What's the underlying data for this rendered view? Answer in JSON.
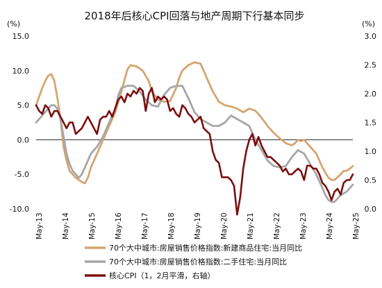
{
  "chart_data": {
    "type": "line",
    "title": "2018年后核心CPI回落与地产周期下行基本同步",
    "left_unit": "(%)",
    "right_unit": "(%)",
    "x_labels": [
      "May-13",
      "May-14",
      "May-15",
      "May-16",
      "May-17",
      "May-18",
      "May-19",
      "May-20",
      "May-21",
      "May-22",
      "May-23",
      "May-24",
      "May-25"
    ],
    "y_left": {
      "min": -10,
      "max": 15,
      "ticks": [
        "15.0",
        "10.0",
        "5.0",
        "0.0",
        "-5.0",
        "-10.0"
      ]
    },
    "y_right": {
      "min": 0,
      "max": 3,
      "ticks": [
        "3.0",
        "2.5",
        "2.0",
        "1.5",
        "1.0",
        "0.5",
        "0.0"
      ]
    },
    "legend_position": "bottom",
    "series": [
      {
        "name": "70个大中城市:房屋销售价格指数:新建商品住宅:当月同比",
        "axis": "left",
        "color": "#D4A571",
        "points": [
          [
            0,
            5
          ],
          [
            2,
            7.5
          ],
          [
            3,
            8.5
          ],
          [
            4,
            9.3
          ],
          [
            5,
            9.5
          ],
          [
            6,
            8.5
          ],
          [
            7,
            6
          ],
          [
            8,
            3
          ],
          [
            9,
            -1
          ],
          [
            10,
            -3
          ],
          [
            11,
            -4.5
          ],
          [
            12,
            -5
          ],
          [
            13,
            -5.5
          ],
          [
            14,
            -5.8
          ],
          [
            15,
            -6.1
          ],
          [
            16,
            -6.3
          ],
          [
            17,
            -5.5
          ],
          [
            18,
            -4
          ],
          [
            20,
            -2
          ],
          [
            22,
            0
          ],
          [
            24,
            2
          ],
          [
            26,
            4
          ],
          [
            28,
            7
          ],
          [
            30,
            10.2
          ],
          [
            31,
            10.8
          ],
          [
            33,
            10.6
          ],
          [
            35,
            10
          ],
          [
            37,
            8.5
          ],
          [
            38,
            7
          ],
          [
            40,
            5.8
          ],
          [
            42,
            5.5
          ],
          [
            44,
            5.6
          ],
          [
            46,
            7.5
          ],
          [
            47,
            9
          ],
          [
            48,
            10
          ],
          [
            50,
            10.8
          ],
          [
            52,
            11.2
          ],
          [
            54,
            11
          ],
          [
            55,
            10
          ],
          [
            56,
            9
          ],
          [
            58,
            7
          ],
          [
            60,
            5.5
          ],
          [
            62,
            5
          ],
          [
            64,
            4.8
          ],
          [
            66,
            4.5
          ],
          [
            68,
            4
          ],
          [
            70,
            4.5
          ],
          [
            72,
            4.2
          ],
          [
            74,
            3.2
          ],
          [
            76,
            2
          ],
          [
            78,
            1
          ],
          [
            80,
            0.2
          ],
          [
            82,
            -0.5
          ],
          [
            84,
            -0.8
          ],
          [
            85,
            -0.5
          ],
          [
            86,
            0
          ],
          [
            87,
            -0.2
          ],
          [
            88,
            0
          ],
          [
            89,
            -0.5
          ],
          [
            90,
            -1
          ],
          [
            92,
            -2
          ],
          [
            94,
            -4
          ],
          [
            96,
            -5.5
          ],
          [
            97,
            -5.8
          ],
          [
            98,
            -5.8
          ],
          [
            100,
            -5
          ],
          [
            101,
            -4.5
          ],
          [
            102,
            -4.5
          ],
          [
            103,
            -4.2
          ],
          [
            104,
            -3.8
          ]
        ]
      },
      {
        "name": "70个大中城市:房屋销售价格指数:二手住宅:当月同比",
        "axis": "left",
        "color": "#A6A6A6",
        "points": [
          [
            0,
            2.5
          ],
          [
            2,
            3.5
          ],
          [
            4,
            4.5
          ],
          [
            5,
            5
          ],
          [
            6,
            5
          ],
          [
            7,
            4.5
          ],
          [
            8,
            3
          ],
          [
            9,
            0.5
          ],
          [
            10,
            -2
          ],
          [
            11,
            -3.5
          ],
          [
            12,
            -4.5
          ],
          [
            13,
            -5
          ],
          [
            14,
            -5.5
          ],
          [
            15,
            -5
          ],
          [
            16,
            -4
          ],
          [
            18,
            -2
          ],
          [
            20,
            -1
          ],
          [
            22,
            0.5
          ],
          [
            24,
            2.5
          ],
          [
            26,
            4.5
          ],
          [
            27,
            6.5
          ],
          [
            28,
            7.5
          ],
          [
            30,
            7.8
          ],
          [
            32,
            7.8
          ],
          [
            34,
            7
          ],
          [
            36,
            5.8
          ],
          [
            38,
            5
          ],
          [
            40,
            4.8
          ],
          [
            42,
            6.5
          ],
          [
            44,
            7.5
          ],
          [
            46,
            7.8
          ],
          [
            48,
            7.8
          ],
          [
            50,
            6
          ],
          [
            52,
            4
          ],
          [
            54,
            3
          ],
          [
            56,
            2.5
          ],
          [
            58,
            2
          ],
          [
            60,
            2
          ],
          [
            62,
            2.5
          ],
          [
            64,
            3.5
          ],
          [
            66,
            3
          ],
          [
            68,
            2.5
          ],
          [
            70,
            2
          ],
          [
            72,
            0
          ],
          [
            74,
            -1.5
          ],
          [
            76,
            -3
          ],
          [
            78,
            -3.8
          ],
          [
            80,
            -4
          ],
          [
            82,
            -3.8
          ],
          [
            84,
            -2.5
          ],
          [
            86,
            -1.5
          ],
          [
            88,
            -2
          ],
          [
            90,
            -3.5
          ],
          [
            92,
            -5
          ],
          [
            94,
            -7
          ],
          [
            95,
            -8
          ],
          [
            96,
            -8.7
          ],
          [
            97,
            -9
          ],
          [
            98,
            -9
          ],
          [
            100,
            -8
          ],
          [
            102,
            -7.5
          ],
          [
            104,
            -6.5
          ]
        ]
      },
      {
        "name": "核心CPI（1，2月平滑，右轴）",
        "axis": "right",
        "color": "#7A0E0E",
        "points": [
          [
            0,
            1.8
          ],
          [
            1,
            1.7
          ],
          [
            2,
            1.65
          ],
          [
            3,
            1.8
          ],
          [
            4,
            1.75
          ],
          [
            5,
            1.6
          ],
          [
            6,
            1.7
          ],
          [
            7,
            1.7
          ],
          [
            8,
            1.6
          ],
          [
            9,
            1.5
          ],
          [
            10,
            1.4
          ],
          [
            11,
            1.5
          ],
          [
            12,
            1.5
          ],
          [
            13,
            1.3
          ],
          [
            14,
            1.35
          ],
          [
            15,
            1.4
          ],
          [
            16,
            1.5
          ],
          [
            17,
            1.6
          ],
          [
            18,
            1.5
          ],
          [
            19,
            1.4
          ],
          [
            20,
            1.3
          ],
          [
            21,
            1.55
          ],
          [
            22,
            1.6
          ],
          [
            23,
            1.6
          ],
          [
            24,
            1.7
          ],
          [
            25,
            1.6
          ],
          [
            26,
            1.75
          ],
          [
            27,
            1.9
          ],
          [
            28,
            1.95
          ],
          [
            29,
            1.85
          ],
          [
            30,
            2
          ],
          [
            31,
            1.95
          ],
          [
            32,
            2.05
          ],
          [
            33,
            2.0
          ],
          [
            34,
            2.1
          ],
          [
            35,
            2.05
          ],
          [
            36,
            1.7
          ],
          [
            37,
            2.0
          ],
          [
            38,
            2.1
          ],
          [
            39,
            1.85
          ],
          [
            40,
            1.95
          ],
          [
            41,
            1.9
          ],
          [
            42,
            1.95
          ],
          [
            43,
            1.9
          ],
          [
            44,
            1.7
          ],
          [
            45,
            1.75
          ],
          [
            46,
            1.65
          ],
          [
            47,
            1.6
          ],
          [
            48,
            1.8
          ],
          [
            49,
            1.75
          ],
          [
            50,
            1.65
          ],
          [
            51,
            1.6
          ],
          [
            52,
            1.5
          ],
          [
            53,
            1.55
          ],
          [
            54,
            1.6
          ],
          [
            55,
            1.4
          ],
          [
            56,
            1.35
          ],
          [
            57,
            1.3
          ],
          [
            58,
            1.0
          ],
          [
            59,
            0.85
          ],
          [
            60,
            0.8
          ],
          [
            61,
            0.55
          ],
          [
            62,
            0.55
          ],
          [
            63,
            0.55
          ],
          [
            64,
            0.5
          ],
          [
            65,
            0.4
          ],
          [
            66,
            -0.1
          ],
          [
            67,
            0.2
          ],
          [
            68,
            0.7
          ],
          [
            69,
            1.0
          ],
          [
            70,
            1.2
          ],
          [
            71,
            1.3
          ],
          [
            72,
            1.1
          ],
          [
            73,
            1.25
          ],
          [
            74,
            1.1
          ],
          [
            75,
            1.0
          ],
          [
            76,
            0.9
          ],
          [
            77,
            0.9
          ],
          [
            78,
            0.85
          ],
          [
            79,
            0.8
          ],
          [
            80,
            0.75
          ],
          [
            81,
            0.65
          ],
          [
            82,
            0.7
          ],
          [
            83,
            0.6
          ],
          [
            84,
            0.6
          ],
          [
            85,
            0.65
          ],
          [
            86,
            0.7
          ],
          [
            87,
            0.65
          ],
          [
            88,
            0.5
          ],
          [
            89,
            0.75
          ],
          [
            90,
            0.75
          ],
          [
            91,
            0.7
          ],
          [
            92,
            0.7
          ],
          [
            93,
            0.6
          ],
          [
            94,
            0.45
          ],
          [
            95,
            0.4
          ],
          [
            96,
            0.3
          ],
          [
            97,
            0.15
          ],
          [
            98,
            0.3
          ],
          [
            99,
            0.35
          ],
          [
            100,
            0.25
          ],
          [
            101,
            0.45
          ],
          [
            102,
            0.5
          ],
          [
            103,
            0.5
          ],
          [
            104,
            0.6
          ]
        ]
      }
    ]
  }
}
